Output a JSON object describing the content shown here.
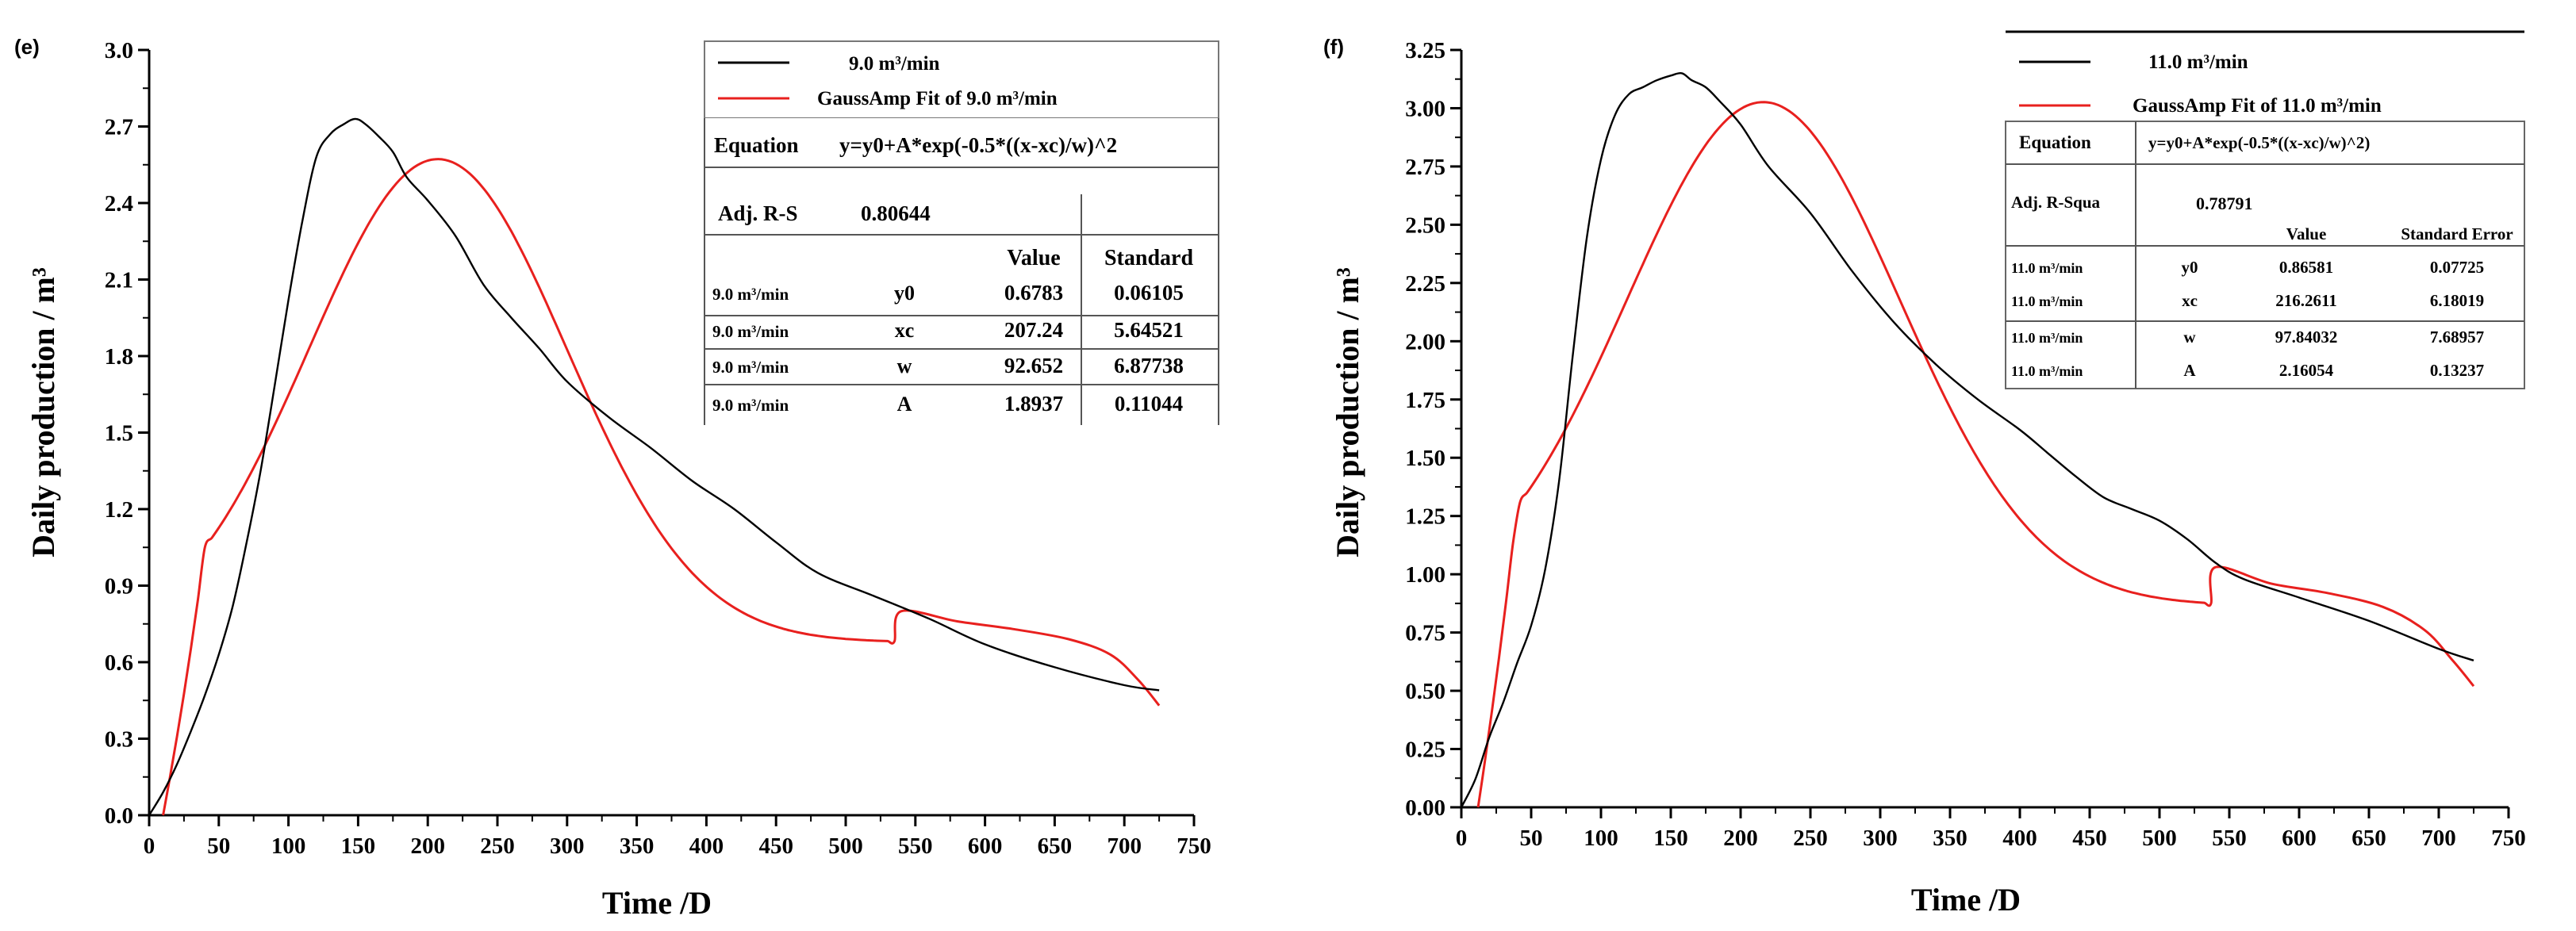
{
  "chart_data": [
    {
      "type": "line",
      "panel_label": "(e)",
      "xlabel": "Time /D",
      "ylabel": "Daily production / m³",
      "xlim": [
        0,
        750
      ],
      "ylim": [
        0,
        3.0
      ],
      "x_ticks": [
        "0",
        "50",
        "100",
        "150",
        "200",
        "250",
        "300",
        "350",
        "400",
        "450",
        "500",
        "550",
        "600",
        "650",
        "700",
        "750"
      ],
      "y_ticks": [
        "0.0",
        "0.3",
        "0.6",
        "0.9",
        "1.2",
        "1.5",
        "1.8",
        "2.1",
        "2.4",
        "2.7",
        "3.0"
      ],
      "legend_position": "top-right",
      "series": [
        {
          "name": "9.0 m³/min",
          "color": "#000000",
          "x": [
            0,
            10,
            20,
            30,
            40,
            50,
            60,
            70,
            80,
            90,
            100,
            110,
            120,
            130,
            140,
            148,
            155,
            165,
            175,
            185,
            200,
            220,
            240,
            260,
            280,
            300,
            330,
            360,
            390,
            420,
            450,
            480,
            520,
            560,
            600,
            650,
            700,
            725
          ],
          "values": [
            0.0,
            0.09,
            0.2,
            0.33,
            0.47,
            0.63,
            0.82,
            1.07,
            1.35,
            1.68,
            2.02,
            2.33,
            2.58,
            2.67,
            2.71,
            2.73,
            2.71,
            2.66,
            2.6,
            2.5,
            2.41,
            2.27,
            2.08,
            1.95,
            1.83,
            1.7,
            1.56,
            1.44,
            1.31,
            1.2,
            1.07,
            0.95,
            0.86,
            0.77,
            0.67,
            0.58,
            0.51,
            0.49
          ]
        },
        {
          "name": "GaussAmp Fit of 9.0 m³/min",
          "color": "#e8201e",
          "model": {
            "y0": 0.6783,
            "xc": 207.24,
            "w": 92.652,
            "A": 1.8937
          },
          "x_range": [
            10,
            725
          ],
          "tail_x": [
            540,
            580,
            620,
            660,
            690,
            710,
            725
          ],
          "tail_values": [
            0.8,
            0.76,
            0.73,
            0.69,
            0.63,
            0.53,
            0.43
          ]
        }
      ],
      "fit_table": {
        "equation_label": "Equation",
        "equation": "y=y0+A*exp(-0.5*((x-xc)/w)^2",
        "adj_r_label": "Adj. R-S",
        "adj_r_value": "0.80644",
        "header": [
          "",
          "",
          "Value",
          "Standard"
        ],
        "rows": [
          [
            "9.0 m³/min",
            "y0",
            "0.6783",
            "0.06105"
          ],
          [
            "9.0 m³/min",
            "xc",
            "207.24",
            "5.64521"
          ],
          [
            "9.0 m³/min",
            "w",
            "92.652",
            "6.87738"
          ],
          [
            "9.0 m³/min",
            "A",
            "1.8937",
            "0.11044"
          ]
        ]
      }
    },
    {
      "type": "line",
      "panel_label": "(f)",
      "xlabel": "Time /D",
      "ylabel": "Daily production / m³",
      "xlim": [
        0,
        750
      ],
      "ylim": [
        0,
        3.25
      ],
      "x_ticks": [
        "0",
        "50",
        "100",
        "150",
        "200",
        "250",
        "300",
        "350",
        "400",
        "450",
        "500",
        "550",
        "600",
        "650",
        "700",
        "750"
      ],
      "y_ticks": [
        "0.00",
        "0.25",
        "0.50",
        "0.75",
        "1.00",
        "1.25",
        "1.50",
        "1.75",
        "2.00",
        "2.25",
        "2.50",
        "2.75",
        "3.00",
        "3.25"
      ],
      "legend_position": "top-right",
      "series": [
        {
          "name": "11.0 m³/min",
          "color": "#000000",
          "x": [
            0,
            10,
            20,
            30,
            40,
            50,
            60,
            70,
            80,
            90,
            100,
            110,
            120,
            130,
            140,
            150,
            158,
            165,
            175,
            185,
            200,
            220,
            250,
            280,
            310,
            340,
            370,
            400,
            420,
            440,
            460,
            480,
            500,
            520,
            540,
            560,
            600,
            650,
            700,
            725
          ],
          "values": [
            0.0,
            0.12,
            0.3,
            0.45,
            0.62,
            0.78,
            1.02,
            1.4,
            1.95,
            2.45,
            2.78,
            2.97,
            3.06,
            3.09,
            3.12,
            3.14,
            3.15,
            3.12,
            3.09,
            3.03,
            2.93,
            2.75,
            2.55,
            2.3,
            2.08,
            1.9,
            1.75,
            1.62,
            1.52,
            1.42,
            1.33,
            1.28,
            1.23,
            1.15,
            1.05,
            0.98,
            0.9,
            0.8,
            0.68,
            0.63
          ]
        },
        {
          "name": "GaussAmp Fit of 11.0 m³/min",
          "color": "#e8201e",
          "model": {
            "y0": 0.86581,
            "xc": 216.2611,
            "w": 97.84032,
            "A": 2.16054
          },
          "x_range": [
            12,
            725
          ],
          "tail_x": [
            540,
            580,
            620,
            660,
            690,
            710,
            725
          ],
          "tail_values": [
            1.03,
            0.96,
            0.92,
            0.86,
            0.76,
            0.63,
            0.52
          ]
        }
      ],
      "fit_table": {
        "equation_label": "Equation",
        "equation": "y=y0+A*exp(-0.5*((x-xc)/w)^2)",
        "adj_r_label": "Adj. R-Squa",
        "adj_r_value": "0.78791",
        "header": [
          "",
          "",
          "Value",
          "Standard Error"
        ],
        "rows": [
          [
            "11.0 m³/min",
            "y0",
            "0.86581",
            "0.07725"
          ],
          [
            "11.0 m³/min",
            "xc",
            "216.2611",
            "6.18019"
          ],
          [
            "11.0 m³/min",
            "w",
            "97.84032",
            "7.68957"
          ],
          [
            "11.0 m³/min",
            "A",
            "2.16054",
            "0.13237"
          ]
        ]
      }
    }
  ]
}
